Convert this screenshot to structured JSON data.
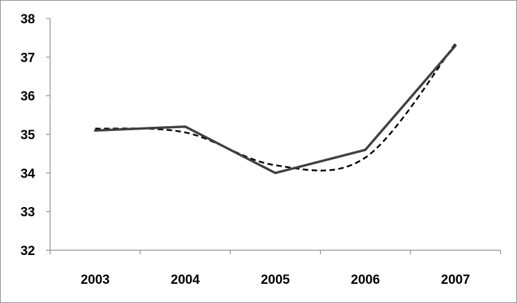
{
  "chart_data": {
    "type": "line",
    "title": "",
    "xlabel": "",
    "ylabel": "",
    "x": [
      "2003",
      "2004",
      "2005",
      "2006",
      "2007"
    ],
    "ylim": [
      32,
      38
    ],
    "yticks": [
      32,
      33,
      34,
      35,
      36,
      37,
      38
    ],
    "grid": false,
    "legend": "none",
    "series": [
      {
        "values": [
          35.1,
          35.2,
          34.0,
          34.6,
          37.3
        ],
        "style": "solid",
        "color": "#404040"
      },
      {
        "values": [
          35.15,
          35.05,
          34.2,
          34.4,
          37.35
        ],
        "style": "dashed",
        "smooth": true,
        "color": "#000000"
      }
    ]
  }
}
